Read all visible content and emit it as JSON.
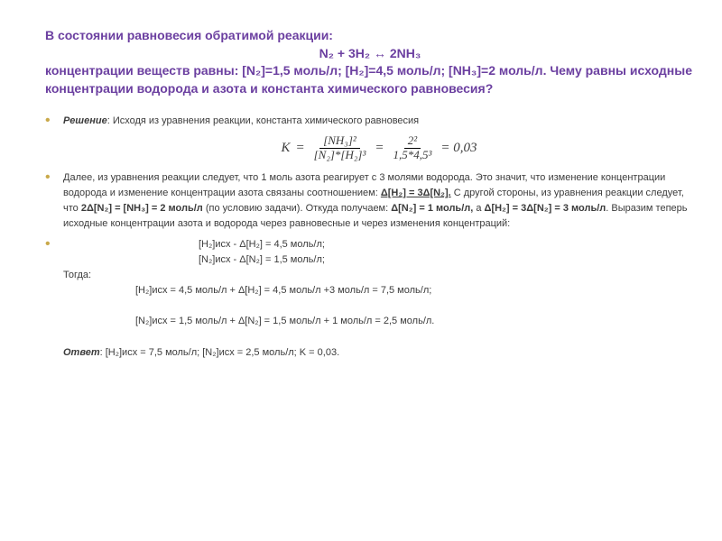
{
  "title": {
    "line1": "В состоянии равновесия обратимой реакции:",
    "eq": "N₂ + 3H₂ ↔ 2NH₃",
    "line2": "концентрации веществ равны: [N₂]=1,5 моль/л; [H₂]=4,5 моль/л; [NH₃]=2 моль/л. Чему равны исходные концентрации водорода и азота и константа химического равновесия?",
    "color": "#6b3fa0"
  },
  "bullet_color": "#c9a94a",
  "solution": {
    "lead_bold": "Решение",
    "lead_rest": ": Исходя из уравнения реакции, константа химического равновесия"
  },
  "formula": {
    "K": "K",
    "n1": "[NH₃]²",
    "d1": "[N₂]*[H₂]³",
    "n2": "2²",
    "d2": "1,5*4,5³",
    "res": "= 0,03"
  },
  "para2": {
    "t1": "Далее, из уравнения реакции следует, что 1 моль азота реагирует с 3 молями водорода. Это значит, что изменение концентрации водорода и изменение концентрации азота связаны соотношением: ",
    "b1": "Δ[H₂] = 3Δ[N₂].",
    "t2": " С другой стороны, из уравнения реакции следует, что ",
    "b2": "2Δ[N₂] = [NH₃] = 2 моль/л",
    "t3": " (по условию задачи). Откуда получаем: ",
    "b3": "Δ[N₂] = 1 моль/л,",
    "t4": " а ",
    "b4": "Δ[H₂] = 3Δ[N₂] = 3 моль/л",
    "t5": ". Выразим теперь исходные концентрации азота и водорода через равновесные и через изменения концентраций:"
  },
  "calc": {
    "c1": "[H₂]исх - Δ[H₂] = 4,5 моль/л;",
    "c2": "[N₂]исх - Δ[N₂] = 1,5 моль/л;",
    "then": "Тогда:",
    "c3": "[H₂]исх = 4,5 моль/л + Δ[H₂] = 4,5 моль/л +3 моль/л = 7,5 моль/л;",
    "c4": "[N₂]исх = 1,5 моль/л + Δ[N₂] = 1,5 моль/л + 1 моль/л = 2,5 моль/л."
  },
  "answer": {
    "label": "Ответ",
    "text": ": [H₂]исх = 7,5 моль/л; [N₂]исх = 2,5 моль/л; K = 0,03."
  }
}
